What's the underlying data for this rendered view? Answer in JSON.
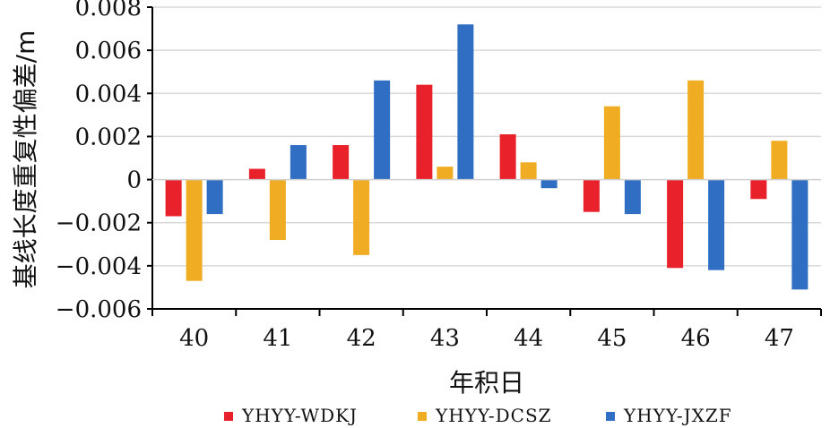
{
  "chart_data": {
    "type": "bar",
    "title": "",
    "xlabel": "年积日",
    "ylabel": "基线长度重复性偏差/m",
    "categories": [
      "40",
      "41",
      "42",
      "43",
      "44",
      "45",
      "46",
      "47"
    ],
    "ylim": [
      -0.006,
      0.008
    ],
    "yticks": [
      0.008,
      0.006,
      0.004,
      0.002,
      0,
      -0.002,
      -0.004,
      -0.006
    ],
    "ytick_labels": [
      "0.008",
      "0.006",
      "0.004",
      "0.002",
      "0",
      "−0.002",
      "−0.004",
      "−0.006"
    ],
    "grid": true,
    "legend_position": "bottom",
    "series": [
      {
        "name": "YHYY-WDKJ",
        "color": "#e8212b",
        "values": [
          -0.0017,
          0.0005,
          0.0016,
          0.0044,
          0.0021,
          -0.0015,
          -0.0041,
          -0.0009
        ]
      },
      {
        "name": "YHYY-DCSZ",
        "color": "#f0ac22",
        "values": [
          -0.0047,
          -0.0028,
          -0.0035,
          0.0006,
          0.0008,
          0.0034,
          0.0046,
          0.0018
        ]
      },
      {
        "name": "YHYY-JXZF",
        "color": "#2f6ec2",
        "values": [
          -0.0016,
          0.0016,
          0.0046,
          0.0072,
          -0.0004,
          -0.0016,
          -0.0042,
          -0.0051
        ]
      }
    ]
  }
}
